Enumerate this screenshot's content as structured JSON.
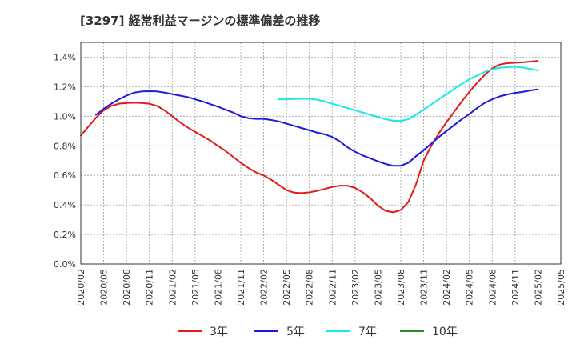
{
  "chart_data": {
    "type": "line",
    "title": "[3297]  経常利益マージンの標準偏差の推移",
    "xlabel": "",
    "ylabel": "",
    "x_ticks": [
      "2020/02",
      "2020/05",
      "2020/08",
      "2020/11",
      "2021/02",
      "2021/05",
      "2021/08",
      "2021/11",
      "2022/02",
      "2022/05",
      "2022/08",
      "2022/11",
      "2023/02",
      "2023/05",
      "2023/08",
      "2023/11",
      "2024/02",
      "2024/05",
      "2024/08",
      "2024/11",
      "2025/02",
      "2025/05"
    ],
    "y_ticks": [
      "0.0%",
      "0.2%",
      "0.4%",
      "0.6%",
      "0.8%",
      "1.0%",
      "1.2%",
      "1.4%"
    ],
    "ylim": [
      0,
      1.5
    ],
    "xlim": [
      "2020/02",
      "2025/05"
    ],
    "grid": true,
    "legend_position": "bottom",
    "series": [
      {
        "name": "3年",
        "color": "#e31a1c",
        "points": [
          [
            "2020/02",
            0.87
          ],
          [
            "2020/03",
            0.93
          ],
          [
            "2020/04",
            0.99
          ],
          [
            "2020/05",
            1.04
          ],
          [
            "2020/06",
            1.07
          ],
          [
            "2020/07",
            1.085
          ],
          [
            "2020/08",
            1.09
          ],
          [
            "2020/09",
            1.092
          ],
          [
            "2020/10",
            1.09
          ],
          [
            "2020/11",
            1.085
          ],
          [
            "2020/12",
            1.07
          ],
          [
            "2021/01",
            1.04
          ],
          [
            "2021/02",
            1.0
          ],
          [
            "2021/03",
            0.96
          ],
          [
            "2021/04",
            0.925
          ],
          [
            "2021/05",
            0.895
          ],
          [
            "2021/06",
            0.865
          ],
          [
            "2021/07",
            0.835
          ],
          [
            "2021/08",
            0.8
          ],
          [
            "2021/09",
            0.765
          ],
          [
            "2021/10",
            0.725
          ],
          [
            "2021/11",
            0.685
          ],
          [
            "2021/12",
            0.65
          ],
          [
            "2022/01",
            0.62
          ],
          [
            "2022/02",
            0.6
          ],
          [
            "2022/03",
            0.57
          ],
          [
            "2022/04",
            0.535
          ],
          [
            "2022/05",
            0.5
          ],
          [
            "2022/06",
            0.483
          ],
          [
            "2022/07",
            0.48
          ],
          [
            "2022/08",
            0.485
          ],
          [
            "2022/09",
            0.495
          ],
          [
            "2022/10",
            0.508
          ],
          [
            "2022/11",
            0.522
          ],
          [
            "2022/12",
            0.53
          ],
          [
            "2023/01",
            0.53
          ],
          [
            "2023/02",
            0.515
          ],
          [
            "2023/03",
            0.485
          ],
          [
            "2023/04",
            0.445
          ],
          [
            "2023/05",
            0.395
          ],
          [
            "2023/06",
            0.36
          ],
          [
            "2023/07",
            0.35
          ],
          [
            "2023/08",
            0.365
          ],
          [
            "2023/09",
            0.42
          ],
          [
            "2023/10",
            0.54
          ],
          [
            "2023/11",
            0.7
          ],
          [
            "2023/12",
            0.8
          ],
          [
            "2024/01",
            0.885
          ],
          [
            "2024/02",
            0.96
          ],
          [
            "2024/03",
            1.03
          ],
          [
            "2024/04",
            1.1
          ],
          [
            "2024/05",
            1.165
          ],
          [
            "2024/06",
            1.225
          ],
          [
            "2024/07",
            1.28
          ],
          [
            "2024/08",
            1.325
          ],
          [
            "2024/09",
            1.35
          ],
          [
            "2024/10",
            1.36
          ],
          [
            "2024/11",
            1.362
          ],
          [
            "2024/12",
            1.365
          ],
          [
            "2025/01",
            1.37
          ],
          [
            "2025/02",
            1.375
          ]
        ]
      },
      {
        "name": "5年",
        "color": "#1a1adb",
        "points": [
          [
            "2020/04",
            1.01
          ],
          [
            "2020/05",
            1.05
          ],
          [
            "2020/06",
            1.085
          ],
          [
            "2020/07",
            1.115
          ],
          [
            "2020/08",
            1.14
          ],
          [
            "2020/09",
            1.16
          ],
          [
            "2020/10",
            1.168
          ],
          [
            "2020/11",
            1.17
          ],
          [
            "2020/12",
            1.168
          ],
          [
            "2021/01",
            1.16
          ],
          [
            "2021/02",
            1.15
          ],
          [
            "2021/03",
            1.14
          ],
          [
            "2021/04",
            1.13
          ],
          [
            "2021/05",
            1.115
          ],
          [
            "2021/06",
            1.1
          ],
          [
            "2021/07",
            1.082
          ],
          [
            "2021/08",
            1.065
          ],
          [
            "2021/09",
            1.045
          ],
          [
            "2021/10",
            1.025
          ],
          [
            "2021/11",
            1.0
          ],
          [
            "2021/12",
            0.987
          ],
          [
            "2022/01",
            0.982
          ],
          [
            "2022/02",
            0.982
          ],
          [
            "2022/03",
            0.975
          ],
          [
            "2022/04",
            0.965
          ],
          [
            "2022/05",
            0.95
          ],
          [
            "2022/06",
            0.935
          ],
          [
            "2022/07",
            0.92
          ],
          [
            "2022/08",
            0.905
          ],
          [
            "2022/09",
            0.89
          ],
          [
            "2022/10",
            0.878
          ],
          [
            "2022/11",
            0.86
          ],
          [
            "2022/12",
            0.83
          ],
          [
            "2023/01",
            0.79
          ],
          [
            "2023/02",
            0.76
          ],
          [
            "2023/03",
            0.735
          ],
          [
            "2023/04",
            0.715
          ],
          [
            "2023/05",
            0.695
          ],
          [
            "2023/06",
            0.677
          ],
          [
            "2023/07",
            0.665
          ],
          [
            "2023/08",
            0.665
          ],
          [
            "2023/09",
            0.685
          ],
          [
            "2023/10",
            0.73
          ],
          [
            "2023/11",
            0.77
          ],
          [
            "2023/12",
            0.815
          ],
          [
            "2024/01",
            0.86
          ],
          [
            "2024/02",
            0.9
          ],
          [
            "2024/03",
            0.94
          ],
          [
            "2024/04",
            0.98
          ],
          [
            "2024/05",
            1.015
          ],
          [
            "2024/06",
            1.055
          ],
          [
            "2024/07",
            1.09
          ],
          [
            "2024/08",
            1.115
          ],
          [
            "2024/09",
            1.135
          ],
          [
            "2024/10",
            1.148
          ],
          [
            "2024/11",
            1.158
          ],
          [
            "2024/12",
            1.165
          ],
          [
            "2025/01",
            1.175
          ],
          [
            "2025/02",
            1.182
          ]
        ]
      },
      {
        "name": "7年",
        "color": "#1ae8e8",
        "points": [
          [
            "2022/04",
            1.115
          ],
          [
            "2022/05",
            1.115
          ],
          [
            "2022/06",
            1.117
          ],
          [
            "2022/07",
            1.118
          ],
          [
            "2022/08",
            1.118
          ],
          [
            "2022/09",
            1.112
          ],
          [
            "2022/10",
            1.1
          ],
          [
            "2022/11",
            1.085
          ],
          [
            "2022/12",
            1.07
          ],
          [
            "2023/01",
            1.055
          ],
          [
            "2023/02",
            1.04
          ],
          [
            "2023/03",
            1.025
          ],
          [
            "2023/04",
            1.01
          ],
          [
            "2023/05",
            0.995
          ],
          [
            "2023/06",
            0.98
          ],
          [
            "2023/07",
            0.97
          ],
          [
            "2023/08",
            0.968
          ],
          [
            "2023/09",
            0.98
          ],
          [
            "2023/10",
            1.01
          ],
          [
            "2023/11",
            1.045
          ],
          [
            "2023/12",
            1.08
          ],
          [
            "2024/01",
            1.115
          ],
          [
            "2024/02",
            1.15
          ],
          [
            "2024/03",
            1.185
          ],
          [
            "2024/04",
            1.22
          ],
          [
            "2024/05",
            1.25
          ],
          [
            "2024/06",
            1.275
          ],
          [
            "2024/07",
            1.3
          ],
          [
            "2024/08",
            1.318
          ],
          [
            "2024/09",
            1.328
          ],
          [
            "2024/10",
            1.333
          ],
          [
            "2024/11",
            1.335
          ],
          [
            "2024/12",
            1.33
          ],
          [
            "2025/01",
            1.32
          ],
          [
            "2025/02",
            1.31
          ]
        ]
      },
      {
        "name": "10年",
        "color": "#2a8a2a",
        "points": []
      }
    ]
  }
}
